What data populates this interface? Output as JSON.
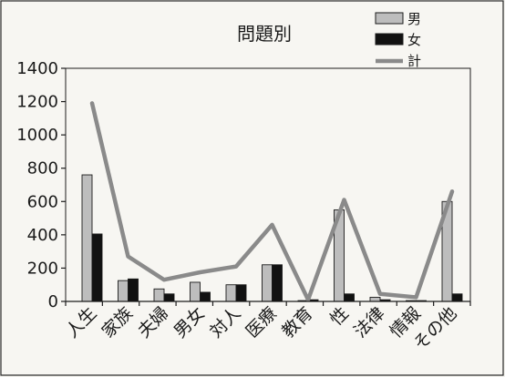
{
  "chart_data": {
    "type": "bar",
    "title": "問題別",
    "xlabel": "",
    "ylabel": "",
    "ylim": [
      0,
      1400
    ],
    "yticks": [
      0,
      200,
      400,
      600,
      800,
      1000,
      1200,
      1400
    ],
    "grid": false,
    "legend_position": "top-right",
    "categories": [
      "人生",
      "家族",
      "夫婦",
      "男女",
      "対人",
      "医療",
      "教育",
      "性",
      "法律",
      "情報",
      "その他"
    ],
    "series": [
      {
        "name": "男",
        "kind": "bar",
        "color": "#bdbdbd",
        "values": [
          760,
          125,
          75,
          115,
          100,
          220,
          5,
          550,
          25,
          5,
          600
        ]
      },
      {
        "name": "女",
        "kind": "bar",
        "color": "#111111",
        "values": [
          405,
          135,
          45,
          55,
          100,
          220,
          10,
          45,
          10,
          5,
          45
        ]
      },
      {
        "name": "計",
        "kind": "line",
        "color": "#8a8a8a",
        "values": [
          1190,
          270,
          130,
          175,
          210,
          460,
          10,
          610,
          45,
          25,
          660
        ]
      }
    ]
  }
}
